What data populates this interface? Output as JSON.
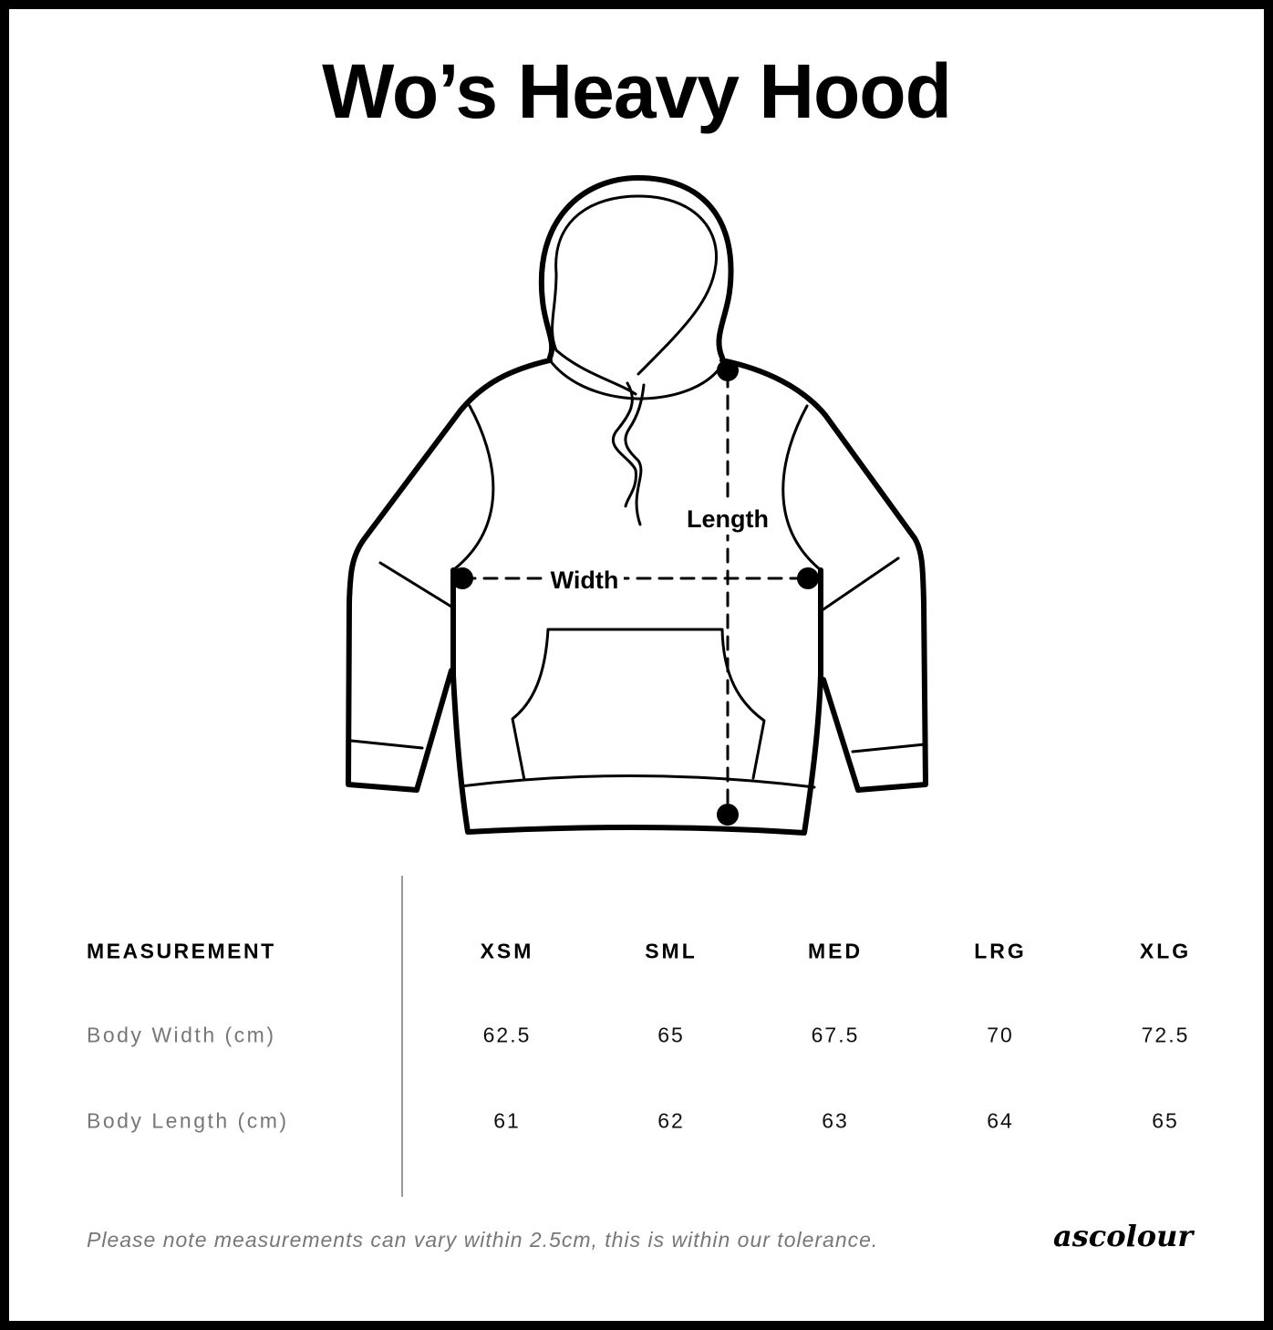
{
  "title": "Wo’s Heavy Hood",
  "diagram": {
    "length_label": "Length",
    "width_label": "Width"
  },
  "table": {
    "header_label": "MEASUREMENT",
    "sizes": [
      "XSM",
      "SML",
      "MED",
      "LRG",
      "XLG"
    ],
    "rows": [
      {
        "label": "Body Width (cm)",
        "values": [
          "62.5",
          "65",
          "67.5",
          "70",
          "72.5"
        ]
      },
      {
        "label": "Body Length (cm)",
        "values": [
          "61",
          "62",
          "63",
          "64",
          "65"
        ]
      }
    ]
  },
  "note": "Please note measurements can vary within 2.5cm, this is within our tolerance.",
  "logo": "ascolour"
}
